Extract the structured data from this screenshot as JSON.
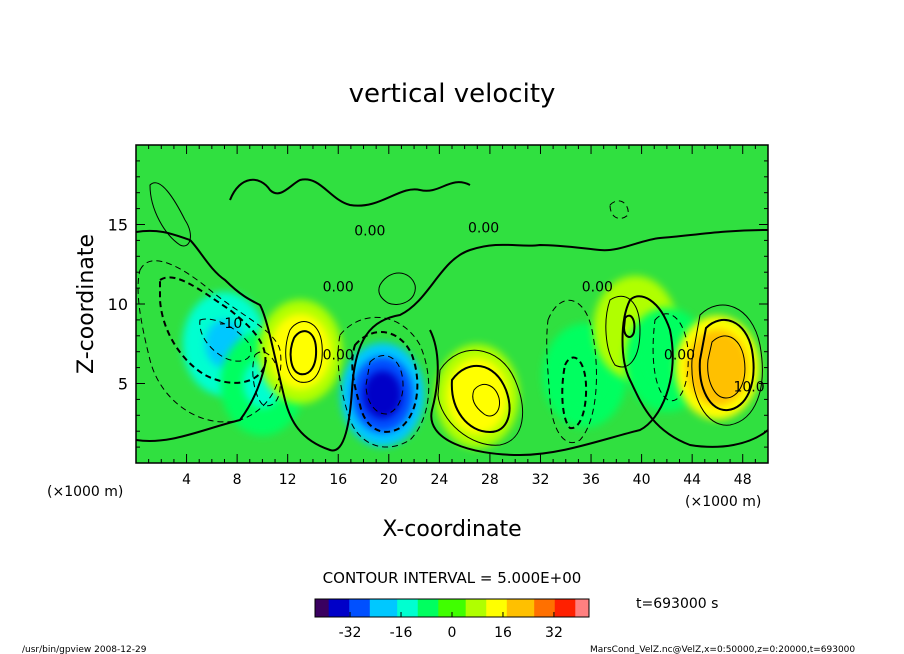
{
  "chart_data": {
    "type": "heatmap",
    "title": "vertical velocity",
    "xlabel": "X-coordinate",
    "ylabel": "Z-coordinate",
    "x_unit_left": "(×1000 m)",
    "x_unit_right": "(×1000 m)",
    "xlim": [
      0,
      50
    ],
    "ylim": [
      0,
      20
    ],
    "x_ticks": [
      4,
      8,
      12,
      16,
      20,
      24,
      28,
      32,
      36,
      40,
      44,
      48
    ],
    "y_ticks": [
      5,
      10,
      15
    ],
    "contour_interval_text": "CONTOUR INTERVAL = 5.000E+00",
    "time_text": "t=693000 s",
    "colorbar": {
      "min": -43,
      "max": 43,
      "ticks": [
        -32,
        -16,
        0,
        16,
        32
      ],
      "colors": [
        "#3a0060",
        "#0000c8",
        "#0050ff",
        "#00c8ff",
        "#00ffd0",
        "#00ff60",
        "#40ff00",
        "#b0ff00",
        "#ffff00",
        "#ffc000",
        "#ff7000",
        "#ff2000",
        "#ff8080"
      ]
    },
    "features": [
      {
        "x": 7,
        "z": 7.5,
        "value": -22
      },
      {
        "x": 10,
        "z": 5,
        "value": -12
      },
      {
        "x": 19.5,
        "z": 4.3,
        "value": -35
      },
      {
        "x": 13,
        "z": 7,
        "value": 14
      },
      {
        "x": 27,
        "z": 4.2,
        "value": 14
      },
      {
        "x": 35.5,
        "z": 5.5,
        "value": -10
      },
      {
        "x": 39.5,
        "z": 8.5,
        "value": 8
      },
      {
        "x": 42,
        "z": 6.5,
        "value": -8
      },
      {
        "x": 46,
        "z": 6,
        "value": 25
      }
    ],
    "contour_labels": [
      {
        "x": 7.5,
        "z": 8.5,
        "text": "-10"
      },
      {
        "x": 16,
        "z": 6.5,
        "text": "0.00"
      },
      {
        "x": 16,
        "z": 10.8,
        "text": "0.00"
      },
      {
        "x": 18.5,
        "z": 14.3,
        "text": "0.00"
      },
      {
        "x": 27.5,
        "z": 14.5,
        "text": "0.00"
      },
      {
        "x": 36.5,
        "z": 10.8,
        "text": "0.00"
      },
      {
        "x": 43,
        "z": 6.5,
        "text": "0.00"
      },
      {
        "x": 48.5,
        "z": 4.5,
        "text": "10.0"
      }
    ]
  },
  "footer": {
    "left": "/usr/bin/gpview   2008-12-29",
    "right": "MarsCond_VelZ.nc@VelZ,x=0:50000,z=0:20000,t=693000"
  }
}
